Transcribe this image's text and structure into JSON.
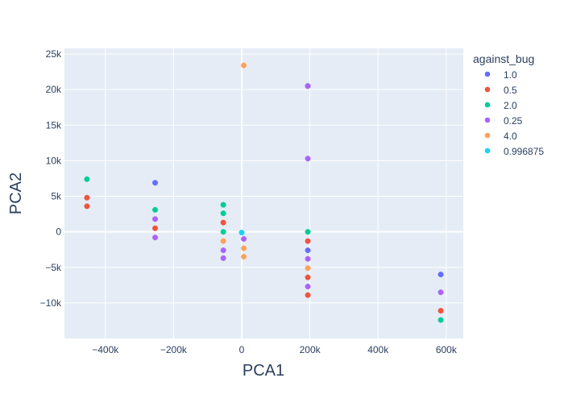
{
  "chart_data": {
    "type": "scatter",
    "title": "",
    "xlabel": "PCA1",
    "ylabel": "PCA2",
    "xlim": [
      -520000,
      650000
    ],
    "ylim": [
      -15000,
      25800
    ],
    "xticks": [
      -400000,
      -200000,
      0,
      200000,
      400000,
      600000
    ],
    "xtick_labels": [
      "−400k",
      "−200k",
      "0",
      "200k",
      "400k",
      "600k"
    ],
    "yticks": [
      -10000,
      -5000,
      0,
      5000,
      10000,
      15000,
      20000,
      25000
    ],
    "ytick_labels": [
      "−10k",
      "−5k",
      "0",
      "5k",
      "10k",
      "15k",
      "20k",
      "25k"
    ],
    "grid": true,
    "legend": {
      "title": "against_bug",
      "position": "right"
    },
    "series": [
      {
        "name": "1.0",
        "color": "#636efa",
        "points": [
          [
            -254000,
            6900
          ],
          [
            194000,
            20500
          ],
          [
            194000,
            -2600
          ],
          [
            584000,
            -6000
          ]
        ]
      },
      {
        "name": "0.5",
        "color": "#ef553b",
        "points": [
          [
            -454000,
            4800
          ],
          [
            -454000,
            3600
          ],
          [
            -254000,
            500
          ],
          [
            -54000,
            1300
          ],
          [
            194000,
            -1300
          ],
          [
            194000,
            -6400
          ],
          [
            194000,
            -8900
          ],
          [
            584000,
            -11100
          ]
        ]
      },
      {
        "name": "2.0",
        "color": "#00cc96",
        "points": [
          [
            -454000,
            7400
          ],
          [
            -254000,
            3100
          ],
          [
            -54000,
            3800
          ],
          [
            -54000,
            2600
          ],
          [
            -54000,
            0
          ],
          [
            194000,
            0
          ],
          [
            584000,
            -12400
          ]
        ]
      },
      {
        "name": "0.25",
        "color": "#ab63fa",
        "points": [
          [
            -254000,
            1800
          ],
          [
            -254000,
            -800
          ],
          [
            -54000,
            -2600
          ],
          [
            -54000,
            -3700
          ],
          [
            6000,
            -1000
          ],
          [
            194000,
            20500
          ],
          [
            194000,
            10300
          ],
          [
            194000,
            -3800
          ],
          [
            194000,
            -7700
          ],
          [
            584000,
            -8500
          ]
        ]
      },
      {
        "name": "4.0",
        "color": "#ffa15a",
        "points": [
          [
            6000,
            23400
          ],
          [
            -54000,
            -1300
          ],
          [
            6000,
            -2300
          ],
          [
            6000,
            -3500
          ],
          [
            194000,
            -5100
          ]
        ]
      },
      {
        "name": "0.996875",
        "color": "#19d3f3",
        "points": [
          [
            0,
            -100
          ]
        ]
      }
    ]
  }
}
